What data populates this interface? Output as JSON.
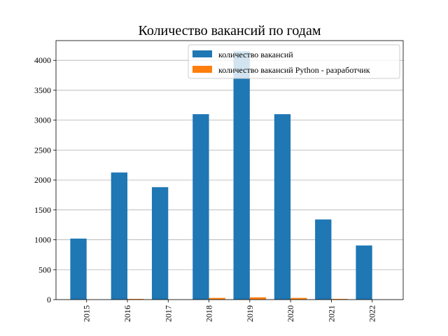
{
  "chart_data": {
    "type": "bar",
    "title": "Количество вакансий по годам",
    "xlabel": "",
    "ylabel": "",
    "categories": [
      "2015",
      "2016",
      "2017",
      "2018",
      "2019",
      "2020",
      "2021",
      "2022"
    ],
    "series": [
      {
        "name": "количество вакансий",
        "color": "#1f77b4",
        "values": [
          1020,
          2125,
          1880,
          3100,
          4150,
          3100,
          1340,
          905
        ]
      },
      {
        "name": "количество вакансий Python - разработчик",
        "color": "#ff7f0e",
        "values": [
          0,
          12,
          0,
          28,
          38,
          28,
          12,
          0
        ]
      }
    ],
    "ylim": [
      0,
      4330
    ],
    "yticks": [
      0,
      500,
      1000,
      1500,
      2000,
      2500,
      3000,
      3500,
      4000
    ],
    "grid": "horizontal",
    "legend_position": "top-right",
    "x_tick_rotation": 90
  }
}
